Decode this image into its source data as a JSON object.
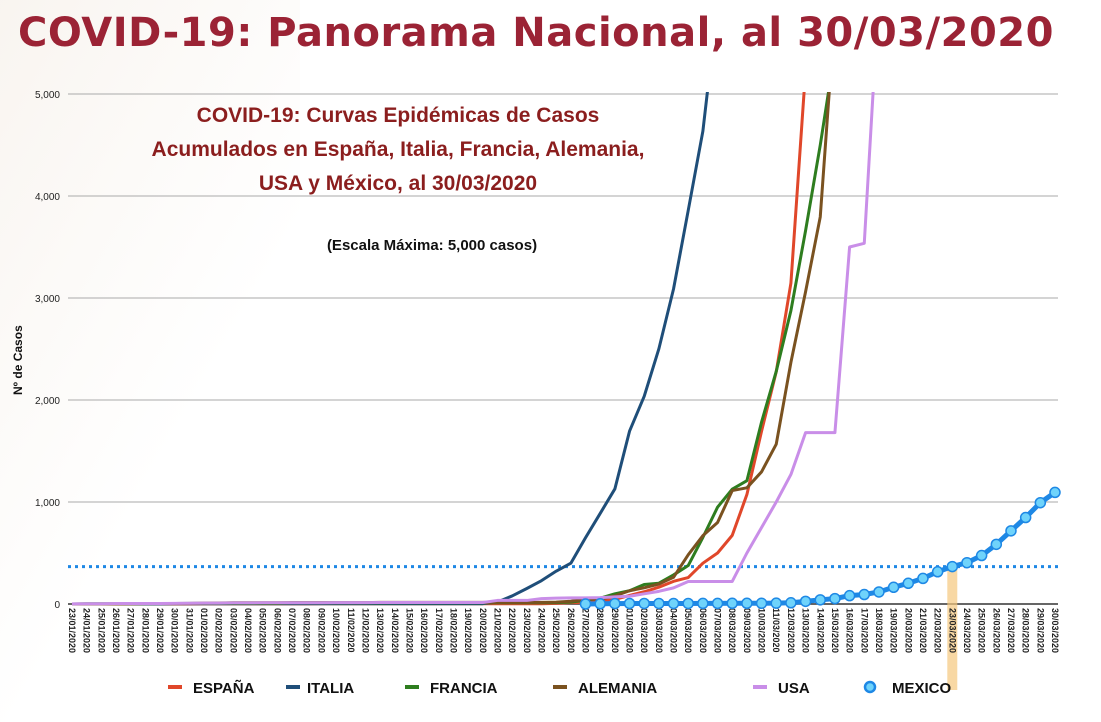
{
  "header": {
    "title": "COVID-19: Panorama Nacional, al 30/03/2020"
  },
  "chart_data": {
    "type": "line",
    "title": "COVID-19: Curvas Epidémicas de Casos Acumulados en España, Italia, Francia, Alemania, USA y México, al 30/03/2020",
    "title_lines": [
      "COVID-19: Curvas Epidémicas de Casos",
      "Acumulados en España, Italia, Francia, Alemania,",
      "USA y México, al 30/03/2020"
    ],
    "subtitle": "(Escala Máxima: 5,000 casos)",
    "ylabel": "Nº de Casos",
    "xlabel": "",
    "ylim": [
      0,
      5000
    ],
    "yticks": [
      "0",
      "1,000",
      "2,000",
      "3,000",
      "4,000",
      "5,000"
    ],
    "ytick_values": [
      0,
      1000,
      2000,
      3000,
      4000,
      5000
    ],
    "grid": true,
    "legend_position": "bottom",
    "reference_line": {
      "value": 367,
      "style": "dotted",
      "color": "#1e88e5"
    },
    "highlight_date": "23/03/2020",
    "x": [
      "23/01/2020",
      "24/01/2020",
      "25/01/2020",
      "26/01/2020",
      "27/01/2020",
      "28/01/2020",
      "29/01/2020",
      "30/01/2020",
      "31/01/2020",
      "01/02/2020",
      "02/02/2020",
      "03/02/2020",
      "04/02/2020",
      "05/02/2020",
      "06/02/2020",
      "07/02/2020",
      "08/02/2020",
      "09/02/2020",
      "10/02/2020",
      "11/02/2020",
      "12/02/2020",
      "13/02/2020",
      "14/02/2020",
      "15/02/2020",
      "16/02/2020",
      "17/02/2020",
      "18/02/2020",
      "19/02/2020",
      "20/02/2020",
      "21/02/2020",
      "22/02/2020",
      "23/02/2020",
      "24/02/2020",
      "25/02/2020",
      "26/02/2020",
      "27/02/2020",
      "28/02/2020",
      "29/02/2020",
      "01/03/2020",
      "02/03/2020",
      "03/03/2020",
      "04/03/2020",
      "05/03/2020",
      "06/03/2020",
      "07/03/2020",
      "08/03/2020",
      "09/03/2020",
      "10/03/2020",
      "11/03/2020",
      "12/03/2020",
      "13/03/2020",
      "14/03/2020",
      "15/03/2020",
      "16/03/2020",
      "17/03/2020",
      "18/03/2020",
      "19/03/2020",
      "20/03/2020",
      "21/03/2020",
      "22/03/2020",
      "23/03/2020",
      "24/03/2020",
      "25/03/2020",
      "26/03/2020",
      "27/03/2020",
      "28/03/2020",
      "29/03/2020",
      "30/03/2020"
    ],
    "series": [
      {
        "name": "ESPAÑA",
        "color": "#e0472a",
        "marker": false,
        "values": [
          0,
          0,
          0,
          0,
          0,
          0,
          0,
          0,
          0,
          1,
          1,
          1,
          1,
          1,
          1,
          1,
          1,
          2,
          2,
          2,
          2,
          2,
          2,
          2,
          2,
          2,
          2,
          2,
          2,
          2,
          2,
          2,
          2,
          6,
          13,
          15,
          32,
          45,
          84,
          120,
          165,
          222,
          259,
          400,
          500,
          673,
          1073,
          1695,
          2277,
          3146,
          5232,
          null,
          null,
          null,
          null,
          null,
          null,
          null,
          null,
          null,
          null,
          null,
          null,
          null,
          null,
          null,
          null,
          null
        ]
      },
      {
        "name": "ITALIA",
        "color": "#1f4e79",
        "marker": false,
        "values": [
          0,
          0,
          0,
          0,
          0,
          0,
          0,
          2,
          2,
          2,
          2,
          2,
          2,
          3,
          3,
          3,
          3,
          3,
          3,
          3,
          3,
          3,
          3,
          3,
          3,
          3,
          3,
          3,
          3,
          20,
          79,
          152,
          229,
          322,
          400,
          650,
          888,
          1128,
          1694,
          2036,
          2502,
          3089,
          3858,
          4636,
          5883,
          null,
          null,
          null,
          null,
          null,
          null,
          null,
          null,
          null,
          null,
          null,
          null,
          null,
          null,
          null,
          null,
          null,
          null,
          null,
          null,
          null,
          null,
          null
        ]
      },
      {
        "name": "FRANCIA",
        "color": "#2e7d1f",
        "marker": false,
        "values": [
          0,
          2,
          3,
          3,
          3,
          4,
          5,
          5,
          6,
          6,
          6,
          6,
          6,
          6,
          6,
          11,
          11,
          11,
          11,
          11,
          11,
          11,
          12,
          12,
          12,
          12,
          12,
          12,
          12,
          12,
          12,
          12,
          12,
          14,
          18,
          38,
          57,
          100,
          130,
          191,
          204,
          285,
          377,
          653,
          949,
          1126,
          1209,
          1784,
          2281,
          2876,
          3661,
          4499,
          5423,
          null,
          null,
          null,
          null,
          null,
          null,
          null,
          null,
          null,
          null,
          null,
          null,
          null,
          null,
          null
        ]
      },
      {
        "name": "ALEMANIA",
        "color": "#7a5220",
        "marker": false,
        "values": [
          0,
          0,
          0,
          0,
          1,
          4,
          4,
          4,
          5,
          8,
          10,
          12,
          12,
          12,
          12,
          13,
          13,
          13,
          13,
          14,
          14,
          16,
          16,
          16,
          16,
          16,
          16,
          16,
          16,
          16,
          16,
          16,
          16,
          18,
          27,
          46,
          48,
          79,
          130,
          159,
          196,
          262,
          482,
          670,
          799,
          1112,
          1139,
          1296,
          1567,
          2369,
          3062,
          3795,
          5795,
          null,
          null,
          null,
          null,
          null,
          null,
          null,
          null,
          null,
          null,
          null,
          null,
          null,
          null,
          null
        ]
      },
      {
        "name": "USA",
        "color": "#c98ee8",
        "marker": false,
        "values": [
          1,
          2,
          2,
          5,
          5,
          5,
          5,
          6,
          7,
          8,
          8,
          11,
          11,
          12,
          12,
          12,
          12,
          12,
          13,
          13,
          13,
          15,
          15,
          15,
          15,
          15,
          15,
          15,
          15,
          35,
          35,
          35,
          53,
          57,
          60,
          60,
          62,
          70,
          76,
          100,
          124,
          158,
          221,
          221,
          221,
          221,
          500,
          750,
          1000,
          1270,
          1680,
          1680,
          1680,
          3500,
          3536,
          6000,
          null,
          null,
          null,
          null,
          null,
          null,
          null,
          null,
          null,
          null,
          null,
          null
        ]
      },
      {
        "name": "MEXICO",
        "color": "#1e88e5",
        "marker": true,
        "marker_color": "#6fd3fb",
        "values": [
          null,
          null,
          null,
          null,
          null,
          null,
          null,
          null,
          null,
          null,
          null,
          null,
          null,
          null,
          null,
          null,
          null,
          null,
          null,
          null,
          null,
          null,
          null,
          null,
          null,
          null,
          null,
          null,
          null,
          null,
          null,
          null,
          null,
          null,
          null,
          0,
          2,
          4,
          5,
          5,
          5,
          5,
          5,
          6,
          6,
          7,
          7,
          7,
          8,
          12,
          26,
          41,
          53,
          82,
          93,
          118,
          164,
          203,
          251,
          316,
          367,
          405,
          475,
          585,
          717,
          848,
          993,
          1094
        ]
      }
    ]
  }
}
